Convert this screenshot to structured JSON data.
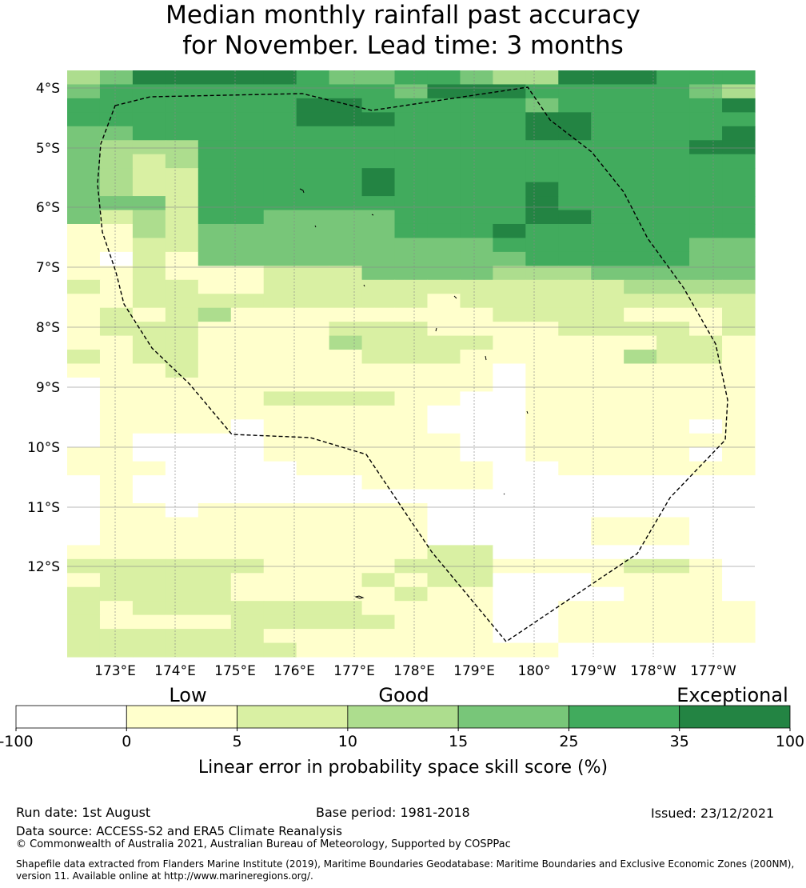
{
  "title_line1": "Median monthly rainfall past accuracy",
  "title_line2": "for November. Lead time: 3 months",
  "lat_labels": [
    "4°S",
    "5°S",
    "6°S",
    "7°S",
    "8°S",
    "9°S",
    "10°S",
    "11°S",
    "12°S"
  ],
  "lon_labels": [
    "173°E",
    "174°E",
    "175°E",
    "176°E",
    "177°E",
    "178°E",
    "179°E",
    "180°",
    "179°W",
    "178°W",
    "177°W"
  ],
  "legend": {
    "category_labels": [
      "Low",
      "Good",
      "Exceptional"
    ],
    "tick_labels": [
      "-100",
      "0",
      "5",
      "10",
      "15",
      "25",
      "35",
      "100"
    ],
    "colors": [
      "#ffffff",
      "#ffffcc",
      "#d9f0a3",
      "#addd8e",
      "#78c679",
      "#41ab5d",
      "#238443"
    ],
    "axis_label": "Linear error in probability space skill score (%)"
  },
  "footer": {
    "run_date": "Run date: 1st August",
    "base_period": "Base period: 1981-2018",
    "issued": "Issued: 23/12/2021",
    "data_source": "Data source: ACCESS-S2 and ERA5 Climate Reanalysis",
    "copyright": "© Commonwealth of Australia 2021, Australian Bureau of Meteorology, Supported by COSPPac",
    "shapefile_note": "Shapefile data extracted from Flanders Marine Institute (2019), Maritime Boundaries Geodatabase: Maritime Boundaries and Exclusive Economic Zones (200NM), version 11. Available online at http://www.marineregions.org/."
  },
  "map_grid": {
    "description_levels": "0=white(<0),1=5,2=10,3=15,4=25,5=35,6=100",
    "rows": [
      "346666654455433666555",
      "455555555546665555543",
      "555555566555554555556",
      "555555566655556655555",
      "445555555555556655556",
      "433355555555555555566",
      "432355555555555555555",
      "432255555655555555555",
      "432255555655556555555",
      "444255555555556555555",
      "423255444455556655555",
      "113244444455565555555",
      "112244444444455555544",
      "102144444444445555544",
      "112111222444433344444",
      "212211222222222223333",
      "112222222221222222222",
      "121231111111122221112",
      "122211112221111222212",
      "112211113222211111221",
      "212211111222111113221",
      "111211111111101111111",
      "011111111111101111111",
      "011111222211001111111",
      "011111111110001111111",
      "011110111110001111101",
      "010000111111001111111",
      "110000111111001111101",
      "111000011111100111111",
      "010000000111100000000",
      "010000000000000000000",
      "011011111110000000000",
      "011111111110000011100",
      "011111111110000011100",
      "111111111112200000000",
      "222222111122211112210",
      "122221111212200011110",
      "222221111121100001110",
      "212222222111100111111",
      "211112222211100111111",
      "222222111111100111111",
      "222222211111111000000"
    ]
  }
}
